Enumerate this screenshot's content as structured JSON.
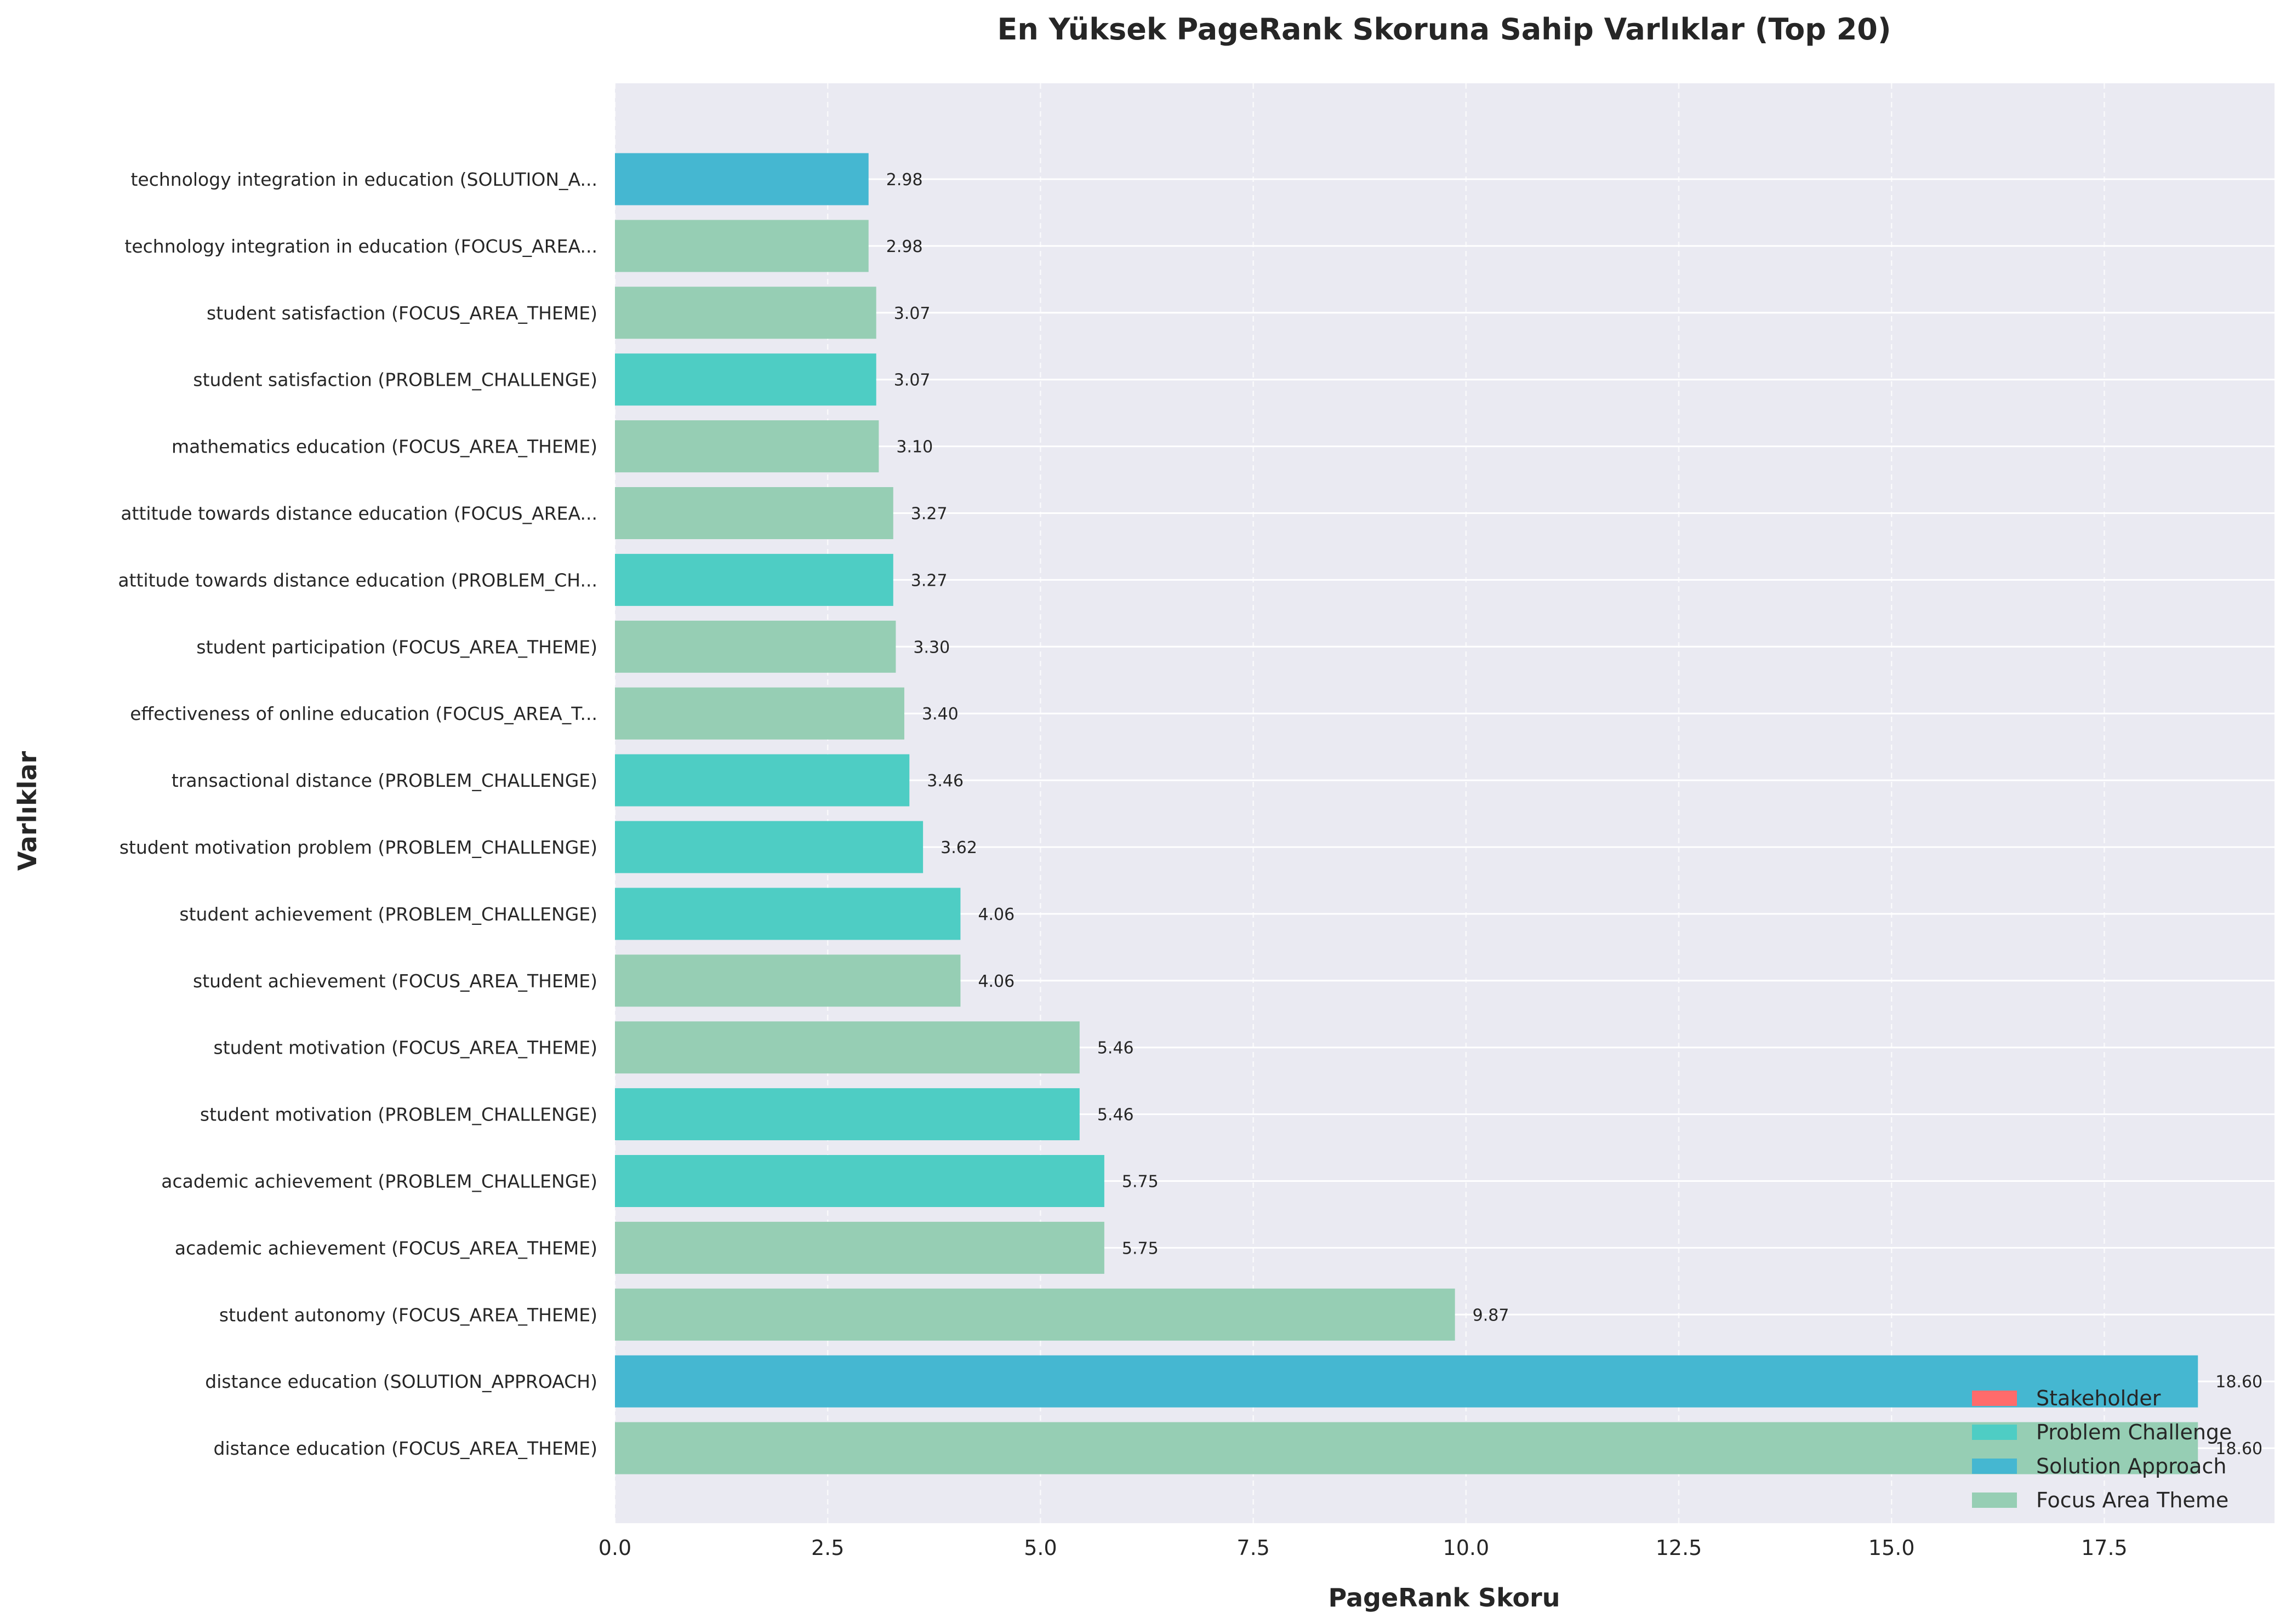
{
  "chart_data": {
    "type": "bar",
    "orientation": "horizontal",
    "title": "En Yüksek PageRank Skoruna Sahip Varlıklar (Top 20)",
    "xlabel": "PageRank Skoru",
    "ylabel": "Varlıklar",
    "xlim": [
      0,
      19.5
    ],
    "xticks": [
      "0.0",
      "2.5",
      "5.0",
      "7.5",
      "10.0",
      "12.5",
      "15.0",
      "17.5"
    ],
    "grid": true,
    "legend_position": "bottom-right",
    "colors": {
      "Stakeholder": "#FF6B6B",
      "Problem Challenge": "#4ECDC4",
      "Solution Approach": "#45B7D1",
      "Focus Area Theme": "#96CEB4"
    },
    "legend": [
      "Stakeholder",
      "Problem Challenge",
      "Solution Approach",
      "Focus Area Theme"
    ],
    "bars": [
      {
        "label": "technology integration in education (SOLUTION_A...",
        "value": 2.98,
        "value_label": "2.98",
        "category": "Solution Approach"
      },
      {
        "label": "technology integration in education (FOCUS_AREA...",
        "value": 2.98,
        "value_label": "2.98",
        "category": "Focus Area Theme"
      },
      {
        "label": "student satisfaction (FOCUS_AREA_THEME)",
        "value": 3.07,
        "value_label": "3.07",
        "category": "Focus Area Theme"
      },
      {
        "label": "student satisfaction (PROBLEM_CHALLENGE)",
        "value": 3.07,
        "value_label": "3.07",
        "category": "Problem Challenge"
      },
      {
        "label": "mathematics education (FOCUS_AREA_THEME)",
        "value": 3.1,
        "value_label": "3.10",
        "category": "Focus Area Theme"
      },
      {
        "label": "attitude towards distance education (FOCUS_AREA...",
        "value": 3.27,
        "value_label": "3.27",
        "category": "Focus Area Theme"
      },
      {
        "label": "attitude towards distance education (PROBLEM_CH...",
        "value": 3.27,
        "value_label": "3.27",
        "category": "Problem Challenge"
      },
      {
        "label": "student participation (FOCUS_AREA_THEME)",
        "value": 3.3,
        "value_label": "3.30",
        "category": "Focus Area Theme"
      },
      {
        "label": "effectiveness of online education (FOCUS_AREA_T...",
        "value": 3.4,
        "value_label": "3.40",
        "category": "Focus Area Theme"
      },
      {
        "label": "transactional distance (PROBLEM_CHALLENGE)",
        "value": 3.46,
        "value_label": "3.46",
        "category": "Problem Challenge"
      },
      {
        "label": "student motivation problem (PROBLEM_CHALLENGE)",
        "value": 3.62,
        "value_label": "3.62",
        "category": "Problem Challenge"
      },
      {
        "label": "student achievement (PROBLEM_CHALLENGE)",
        "value": 4.06,
        "value_label": "4.06",
        "category": "Problem Challenge"
      },
      {
        "label": "student achievement (FOCUS_AREA_THEME)",
        "value": 4.06,
        "value_label": "4.06",
        "category": "Focus Area Theme"
      },
      {
        "label": "student motivation (FOCUS_AREA_THEME)",
        "value": 5.46,
        "value_label": "5.46",
        "category": "Focus Area Theme"
      },
      {
        "label": "student motivation (PROBLEM_CHALLENGE)",
        "value": 5.46,
        "value_label": "5.46",
        "category": "Problem Challenge"
      },
      {
        "label": "academic achievement (PROBLEM_CHALLENGE)",
        "value": 5.75,
        "value_label": "5.75",
        "category": "Problem Challenge"
      },
      {
        "label": "academic achievement (FOCUS_AREA_THEME)",
        "value": 5.75,
        "value_label": "5.75",
        "category": "Focus Area Theme"
      },
      {
        "label": "student autonomy (FOCUS_AREA_THEME)",
        "value": 9.87,
        "value_label": "9.87",
        "category": "Focus Area Theme"
      },
      {
        "label": "distance education (SOLUTION_APPROACH)",
        "value": 18.6,
        "value_label": "18.60",
        "category": "Solution Approach"
      },
      {
        "label": "distance education (FOCUS_AREA_THEME)",
        "value": 18.6,
        "value_label": "18.60",
        "category": "Focus Area Theme"
      }
    ]
  }
}
